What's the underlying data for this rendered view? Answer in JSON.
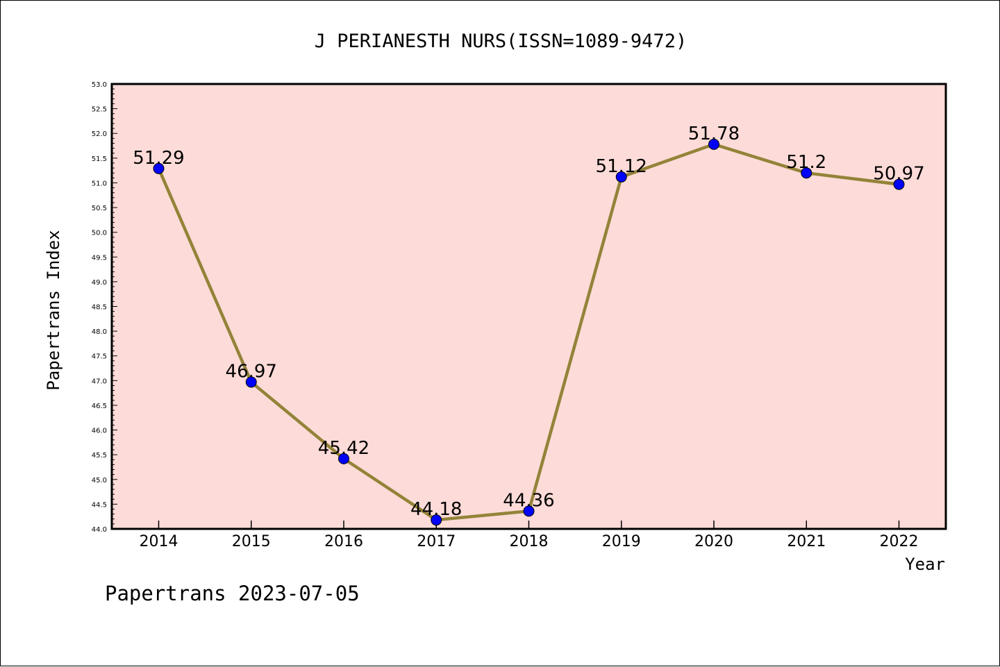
{
  "chart_data": {
    "type": "line",
    "title": "J PERIANESTH NURS(ISSN=1089-9472)",
    "xlabel": "Year",
    "ylabel": "Papertrans Index",
    "categories": [
      "2014",
      "2015",
      "2016",
      "2017",
      "2018",
      "2019",
      "2020",
      "2021",
      "2022"
    ],
    "series": [
      {
        "values": [
          51.29,
          46.97,
          45.42,
          44.18,
          44.36,
          51.12,
          51.78,
          51.2,
          50.97
        ],
        "labels": [
          "51.29",
          "46.97",
          "45.42",
          "44.18",
          "44.36",
          "51.12",
          "51.78",
          "51.2",
          "50.97"
        ]
      }
    ],
    "ylim": [
      44.0,
      53.0
    ],
    "yticks": [
      "44.0",
      "44.5",
      "45.0",
      "45.5",
      "46.0",
      "46.5",
      "47.0",
      "47.5",
      "48.0",
      "48.5",
      "49.0",
      "49.5",
      "50.0",
      "50.5",
      "51.0",
      "51.5",
      "52.0",
      "52.5",
      "53.0"
    ],
    "grid": false,
    "colors": {
      "plot_background": "#fddbd8",
      "line": "#938338",
      "marker": "#0000ff"
    }
  },
  "footer": "Papertrans 2023-07-05"
}
